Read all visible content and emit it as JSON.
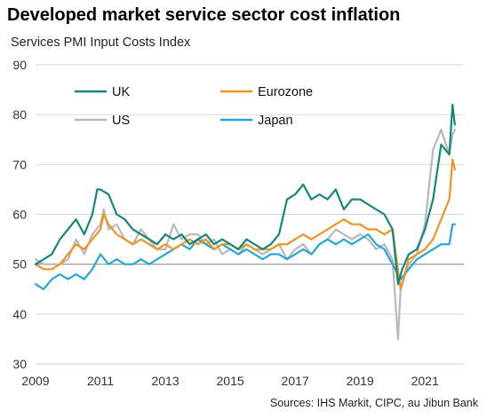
{
  "title": "Developed market service sector cost inflation",
  "subtitle": "Services PMI Input Costs Index",
  "source": "Sources: IHS Markit, CIPC, au Jibun Bank",
  "chart_data": {
    "type": "line",
    "ylabel": "Services PMI Input Costs Index",
    "ylim": [
      30,
      90
    ],
    "yticks": [
      30,
      40,
      50,
      60,
      70,
      80,
      90
    ],
    "xlim": [
      2009,
      2022.2
    ],
    "xticks": [
      2009,
      2011,
      2013,
      2015,
      2017,
      2019,
      2021
    ],
    "reference_line": 50,
    "legend_placement": "top-left, two columns",
    "series": [
      {
        "name": "UK",
        "color": "#13867f",
        "x": [
          2009.0,
          2009.25,
          2009.5,
          2009.75,
          2010.0,
          2010.25,
          2010.5,
          2010.75,
          2010.9,
          2011.0,
          2011.25,
          2011.5,
          2011.75,
          2012.0,
          2012.25,
          2012.5,
          2012.75,
          2013.0,
          2013.25,
          2013.5,
          2013.75,
          2014.0,
          2014.25,
          2014.5,
          2014.75,
          2015.0,
          2015.25,
          2015.5,
          2015.75,
          2016.0,
          2016.25,
          2016.5,
          2016.75,
          2017.0,
          2017.25,
          2017.5,
          2017.75,
          2018.0,
          2018.25,
          2018.5,
          2018.75,
          2019.0,
          2019.25,
          2019.5,
          2019.75,
          2020.0,
          2020.17,
          2020.3,
          2020.5,
          2020.75,
          2021.0,
          2021.25,
          2021.5,
          2021.75,
          2021.85,
          2021.92
        ],
        "y": [
          50,
          51,
          52,
          55,
          57,
          59,
          56,
          60,
          65,
          65,
          64,
          60,
          59,
          57,
          56,
          55,
          54,
          56,
          55,
          56,
          54,
          55,
          56,
          54,
          55,
          54,
          53,
          55,
          54,
          53,
          54,
          56,
          63,
          64,
          66,
          63,
          64,
          63,
          65,
          61,
          63,
          63,
          62,
          61,
          60,
          57,
          46,
          49,
          52,
          53,
          57,
          63,
          74,
          72,
          82,
          78
        ]
      },
      {
        "name": "Eurozone",
        "color": "#f0931f",
        "x": [
          2009.0,
          2009.25,
          2009.5,
          2009.75,
          2010.0,
          2010.25,
          2010.5,
          2010.75,
          2011.0,
          2011.1,
          2011.25,
          2011.5,
          2011.75,
          2012.0,
          2012.25,
          2012.5,
          2012.75,
          2013.0,
          2013.25,
          2013.5,
          2013.75,
          2014.0,
          2014.25,
          2014.5,
          2014.75,
          2015.0,
          2015.25,
          2015.5,
          2015.75,
          2016.0,
          2016.25,
          2016.5,
          2016.75,
          2017.0,
          2017.25,
          2017.5,
          2017.75,
          2018.0,
          2018.25,
          2018.5,
          2018.75,
          2019.0,
          2019.25,
          2019.5,
          2019.75,
          2020.0,
          2020.25,
          2020.5,
          2020.75,
          2021.0,
          2021.25,
          2021.5,
          2021.75,
          2021.85,
          2021.92
        ],
        "y": [
          50,
          49,
          49,
          50,
          52,
          54,
          53,
          55,
          57,
          60,
          58,
          56,
          55,
          54,
          55,
          54,
          53,
          54,
          53,
          54,
          55,
          54,
          55,
          53,
          54,
          54,
          53,
          54,
          53,
          53,
          53,
          54,
          54,
          55,
          56,
          55,
          56,
          57,
          58,
          59,
          58,
          58,
          57,
          57,
          56,
          57,
          45,
          51,
          52,
          53,
          55,
          59,
          63,
          71,
          69
        ]
      },
      {
        "name": "US",
        "color": "#b8b8b8",
        "x": [
          2009.0,
          2009.25,
          2009.5,
          2009.75,
          2010.0,
          2010.25,
          2010.5,
          2010.75,
          2011.0,
          2011.1,
          2011.25,
          2011.5,
          2011.75,
          2012.0,
          2012.25,
          2012.5,
          2012.75,
          2013.0,
          2013.25,
          2013.5,
          2013.75,
          2014.0,
          2014.25,
          2014.5,
          2014.75,
          2015.0,
          2015.25,
          2015.5,
          2015.75,
          2016.0,
          2016.25,
          2016.5,
          2016.75,
          2017.0,
          2017.25,
          2017.5,
          2017.75,
          2018.0,
          2018.25,
          2018.5,
          2018.75,
          2019.0,
          2019.25,
          2019.5,
          2019.75,
          2020.0,
          2020.17,
          2020.25,
          2020.5,
          2020.75,
          2021.0,
          2021.25,
          2021.5,
          2021.75,
          2021.85,
          2021.92
        ],
        "y": [
          51,
          50,
          50,
          50,
          51,
          55,
          52,
          56,
          58,
          61,
          57,
          58,
          55,
          54,
          57,
          55,
          53,
          53,
          58,
          55,
          56,
          56,
          54,
          55,
          52,
          53,
          52,
          54,
          53,
          52,
          53,
          54,
          51,
          53,
          54,
          52,
          54,
          55,
          57,
          56,
          55,
          56,
          55,
          53,
          54,
          51,
          35,
          45,
          50,
          52,
          58,
          73,
          77,
          72,
          76,
          77
        ]
      },
      {
        "name": "Japan",
        "color": "#22a7d8",
        "x": [
          2009.0,
          2009.25,
          2009.5,
          2009.75,
          2010.0,
          2010.25,
          2010.5,
          2010.75,
          2011.0,
          2011.25,
          2011.5,
          2011.75,
          2012.0,
          2012.25,
          2012.5,
          2012.75,
          2013.0,
          2013.25,
          2013.5,
          2013.75,
          2014.0,
          2014.25,
          2014.5,
          2014.75,
          2015.0,
          2015.25,
          2015.5,
          2015.75,
          2016.0,
          2016.25,
          2016.5,
          2016.75,
          2017.0,
          2017.25,
          2017.5,
          2017.75,
          2018.0,
          2018.25,
          2018.5,
          2018.75,
          2019.0,
          2019.25,
          2019.5,
          2019.75,
          2020.0,
          2020.25,
          2020.5,
          2020.75,
          2021.0,
          2021.25,
          2021.5,
          2021.75,
          2021.85,
          2021.92
        ],
        "y": [
          46,
          45,
          47,
          48,
          47,
          48,
          47,
          49,
          52,
          50,
          51,
          50,
          50,
          51,
          50,
          51,
          52,
          53,
          54,
          53,
          55,
          54,
          53,
          54,
          53,
          52,
          53,
          52,
          51,
          52,
          52,
          51,
          52,
          53,
          52,
          54,
          55,
          54,
          55,
          54,
          55,
          56,
          54,
          53,
          50,
          47,
          49,
          51,
          52,
          53,
          54,
          54,
          58,
          58
        ]
      }
    ]
  }
}
